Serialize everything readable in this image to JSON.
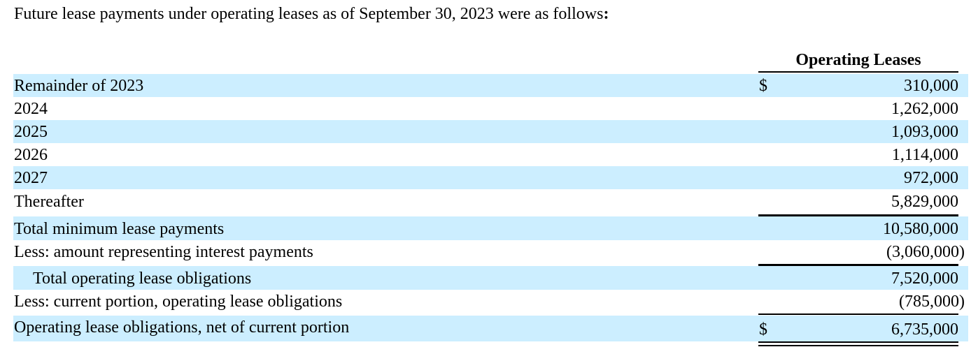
{
  "intro": {
    "text": "Future lease payments under operating leases as of September 30, 2023 were as follows",
    "colon": ":"
  },
  "table": {
    "column_header": "Operating Leases",
    "rows": [
      {
        "label": "Remainder of 2023",
        "currency": "$",
        "amount": "310,000"
      },
      {
        "label": "2024",
        "currency": "",
        "amount": "1,262,000"
      },
      {
        "label": "2025",
        "currency": "",
        "amount": "1,093,000"
      },
      {
        "label": "2026",
        "currency": "",
        "amount": "1,114,000"
      },
      {
        "label": "2027",
        "currency": "",
        "amount": "972,000"
      },
      {
        "label": "Thereafter",
        "currency": "",
        "amount": "5,829,000"
      },
      {
        "label": "Total minimum lease payments",
        "currency": "",
        "amount": "10,580,000"
      },
      {
        "label": "Less: amount representing interest payments",
        "currency": "",
        "amount": "(3,060,000)"
      },
      {
        "label": "Total operating lease obligations",
        "currency": "",
        "amount": "7,520,000"
      },
      {
        "label": "Less: current portion, operating lease obligations",
        "currency": "",
        "amount": "(785,000)"
      },
      {
        "label": "Operating lease obligations, net of current portion",
        "currency": "$",
        "amount": "6,735,000"
      }
    ]
  },
  "colors": {
    "row_shade": "#cceeff",
    "text": "#000000"
  }
}
